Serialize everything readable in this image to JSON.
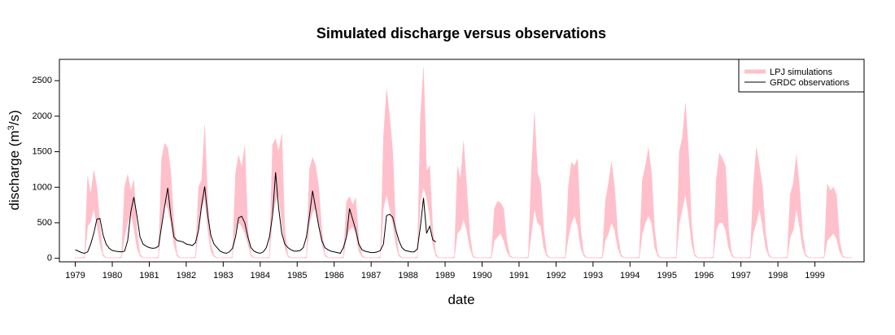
{
  "chart_data": {
    "type": "area",
    "title": "Simulated discharge versus observations",
    "xlabel": "date",
    "ylabel": "discharge (m",
    "ylabel_superscript": "3",
    "ylabel_suffix": "/s)",
    "xlim": [
      1978.57,
      2000.33
    ],
    "ylim": [
      -50,
      2800
    ],
    "x_ticks": [
      1979,
      1980,
      1981,
      1982,
      1983,
      1984,
      1985,
      1986,
      1987,
      1988,
      1989,
      1990,
      1991,
      1992,
      1993,
      1994,
      1995,
      1996,
      1997,
      1998,
      1999
    ],
    "x_tick_labels": [
      "1979",
      "1980",
      "1981",
      "1982",
      "1983",
      "1984",
      "1985",
      "1986",
      "1987",
      "1988",
      "1989",
      "1990",
      "1991",
      "1992",
      "1993",
      "1994",
      "1995",
      "1996",
      "1997",
      "1998",
      "1999"
    ],
    "y_ticks": [
      0,
      500,
      1000,
      1500,
      2000,
      2500
    ],
    "y_tick_labels": [
      "0",
      "500",
      "1000",
      "1500",
      "2000",
      "2500"
    ],
    "grid": false,
    "legend_position": "top-right",
    "series": [
      {
        "name": "LPJ simulations",
        "kind": "band",
        "color": "#ffc0cb",
        "years": [
          {
            "year": 1979,
            "lower": [
              5,
              5,
              5,
              5,
              450,
              520,
              700,
              480,
              200,
              30,
              5,
              5
            ],
            "upper": [
              10,
              10,
              10,
              20,
              1150,
              900,
              1240,
              1000,
              450,
              60,
              10,
              10
            ]
          },
          {
            "year": 1980,
            "lower": [
              5,
              5,
              5,
              5,
              300,
              500,
              650,
              420,
              150,
              30,
              5,
              5
            ],
            "upper": [
              10,
              10,
              10,
              20,
              1000,
              1180,
              950,
              1100,
              380,
              60,
              10,
              10
            ]
          },
          {
            "year": 1981,
            "lower": [
              5,
              5,
              5,
              5,
              500,
              800,
              700,
              500,
              200,
              30,
              5,
              5
            ],
            "upper": [
              10,
              10,
              10,
              20,
              1400,
              1620,
              1550,
              1200,
              500,
              60,
              10,
              10
            ]
          },
          {
            "year": 1982,
            "lower": [
              5,
              5,
              5,
              5,
              400,
              700,
              850,
              400,
              100,
              20,
              5,
              5
            ],
            "upper": [
              10,
              10,
              10,
              20,
              1000,
              1100,
              1870,
              800,
              200,
              40,
              10,
              10
            ]
          },
          {
            "year": 1983,
            "lower": [
              5,
              5,
              5,
              5,
              400,
              500,
              450,
              350,
              200,
              30,
              5,
              5
            ],
            "upper": [
              10,
              10,
              10,
              20,
              1200,
              1450,
              1280,
              1580,
              400,
              60,
              10,
              10
            ]
          },
          {
            "year": 1984,
            "lower": [
              5,
              5,
              5,
              5,
              600,
              800,
              900,
              500,
              150,
              20,
              5,
              5
            ],
            "upper": [
              10,
              10,
              10,
              20,
              1600,
              1680,
              1500,
              1750,
              400,
              40,
              10,
              10
            ]
          },
          {
            "year": 1985,
            "lower": [
              5,
              5,
              5,
              5,
              500,
              650,
              700,
              500,
              200,
              30,
              5,
              5
            ],
            "upper": [
              10,
              10,
              10,
              20,
              1250,
              1420,
              1300,
              1000,
              400,
              60,
              10,
              10
            ]
          },
          {
            "year": 1986,
            "lower": [
              5,
              5,
              5,
              5,
              300,
              400,
              450,
              350,
              100,
              20,
              5,
              5
            ],
            "upper": [
              10,
              10,
              10,
              20,
              800,
              870,
              750,
              850,
              250,
              40,
              10,
              10
            ]
          },
          {
            "year": 1987,
            "lower": [
              5,
              5,
              5,
              5,
              700,
              900,
              700,
              500,
              200,
              30,
              5,
              5
            ],
            "upper": [
              10,
              10,
              10,
              20,
              1700,
              2380,
              2000,
              1500,
              400,
              60,
              10,
              10
            ]
          },
          {
            "year": 1988,
            "lower": [
              5,
              5,
              5,
              5,
              800,
              1000,
              850,
              600,
              200,
              30,
              5,
              5
            ],
            "upper": [
              10,
              10,
              10,
              20,
              2000,
              2680,
              1230,
              1300,
              400,
              60,
              10,
              10
            ]
          },
          {
            "year": 1989,
            "lower": [
              5,
              5,
              5,
              5,
              350,
              400,
              550,
              400,
              150,
              20,
              5,
              5
            ],
            "upper": [
              10,
              10,
              10,
              20,
              1300,
              1100,
              1650,
              1000,
              350,
              40,
              10,
              10
            ]
          },
          {
            "year": 1990,
            "lower": [
              5,
              5,
              5,
              5,
              250,
              300,
              350,
              250,
              100,
              20,
              5,
              5
            ],
            "upper": [
              10,
              10,
              10,
              20,
              700,
              800,
              780,
              700,
              250,
              40,
              10,
              10
            ]
          },
          {
            "year": 1991,
            "lower": [
              5,
              5,
              5,
              5,
              350,
              700,
              500,
              450,
              150,
              30,
              5,
              5
            ],
            "upper": [
              10,
              10,
              10,
              20,
              1200,
              2050,
              1200,
              1050,
              400,
              60,
              10,
              10
            ]
          },
          {
            "year": 1992,
            "lower": [
              5,
              5,
              5,
              5,
              300,
              500,
              600,
              450,
              150,
              30,
              5,
              5
            ],
            "upper": [
              10,
              10,
              10,
              20,
              1000,
              1350,
              1300,
              1400,
              400,
              60,
              10,
              10
            ]
          },
          {
            "year": 1993,
            "lower": [
              5,
              5,
              5,
              5,
              250,
              350,
              500,
              400,
              150,
              30,
              5,
              5
            ],
            "upper": [
              10,
              10,
              10,
              20,
              800,
              1050,
              1350,
              1000,
              350,
              60,
              10,
              10
            ]
          },
          {
            "year": 1994,
            "lower": [
              5,
              5,
              5,
              5,
              350,
              500,
              600,
              500,
              150,
              30,
              5,
              5
            ],
            "upper": [
              10,
              10,
              10,
              20,
              1100,
              1300,
              1550,
              1200,
              400,
              60,
              10,
              10
            ]
          },
          {
            "year": 1995,
            "lower": [
              5,
              5,
              5,
              5,
              500,
              700,
              900,
              600,
              200,
              30,
              5,
              5
            ],
            "upper": [
              10,
              10,
              10,
              20,
              1500,
              1700,
              2180,
              1500,
              450,
              60,
              10,
              10
            ]
          },
          {
            "year": 1996,
            "lower": [
              5,
              5,
              5,
              5,
              400,
              500,
              500,
              400,
              150,
              30,
              5,
              5
            ],
            "upper": [
              10,
              10,
              10,
              20,
              1100,
              1480,
              1400,
              1300,
              400,
              60,
              10,
              10
            ]
          },
          {
            "year": 1997,
            "lower": [
              5,
              5,
              5,
              5,
              350,
              500,
              700,
              450,
              150,
              30,
              5,
              5
            ],
            "upper": [
              10,
              10,
              10,
              20,
              1000,
              1560,
              1300,
              1000,
              350,
              60,
              10,
              10
            ]
          },
          {
            "year": 1998,
            "lower": [
              5,
              5,
              5,
              5,
              300,
              400,
              700,
              450,
              150,
              30,
              5,
              5
            ],
            "upper": [
              10,
              10,
              10,
              20,
              900,
              1050,
              1450,
              1000,
              350,
              60,
              10,
              10
            ]
          },
          {
            "year": 1999,
            "lower": [
              5,
              5,
              5,
              5,
              250,
              300,
              350,
              280,
              100,
              20,
              5,
              5
            ],
            "upper": [
              10,
              10,
              10,
              20,
              1050,
              950,
              1000,
              900,
              250,
              40,
              10,
              10
            ]
          }
        ]
      },
      {
        "name": "GRDC observations",
        "kind": "line",
        "color": "#000000",
        "start": 1979.0,
        "step": 0.08333,
        "values": [
          120,
          100,
          80,
          70,
          90,
          200,
          350,
          550,
          560,
          330,
          200,
          140,
          110,
          100,
          95,
          90,
          100,
          250,
          650,
          860,
          600,
          300,
          200,
          170,
          150,
          140,
          145,
          170,
          450,
          730,
          990,
          600,
          300,
          250,
          240,
          230,
          200,
          190,
          180,
          220,
          400,
          750,
          1010,
          600,
          320,
          200,
          150,
          100,
          80,
          70,
          90,
          140,
          300,
          570,
          590,
          500,
          300,
          150,
          100,
          80,
          70,
          90,
          150,
          300,
          600,
          1210,
          700,
          350,
          200,
          150,
          120,
          100,
          100,
          110,
          150,
          300,
          600,
          950,
          700,
          450,
          250,
          150,
          120,
          100,
          90,
          80,
          70,
          150,
          300,
          700,
          550,
          400,
          200,
          120,
          100,
          90,
          80,
          80,
          90,
          110,
          200,
          600,
          620,
          580,
          400,
          250,
          150,
          110,
          100,
          90,
          90,
          130,
          450,
          850,
          350,
          450,
          260,
          230
        ]
      }
    ]
  }
}
